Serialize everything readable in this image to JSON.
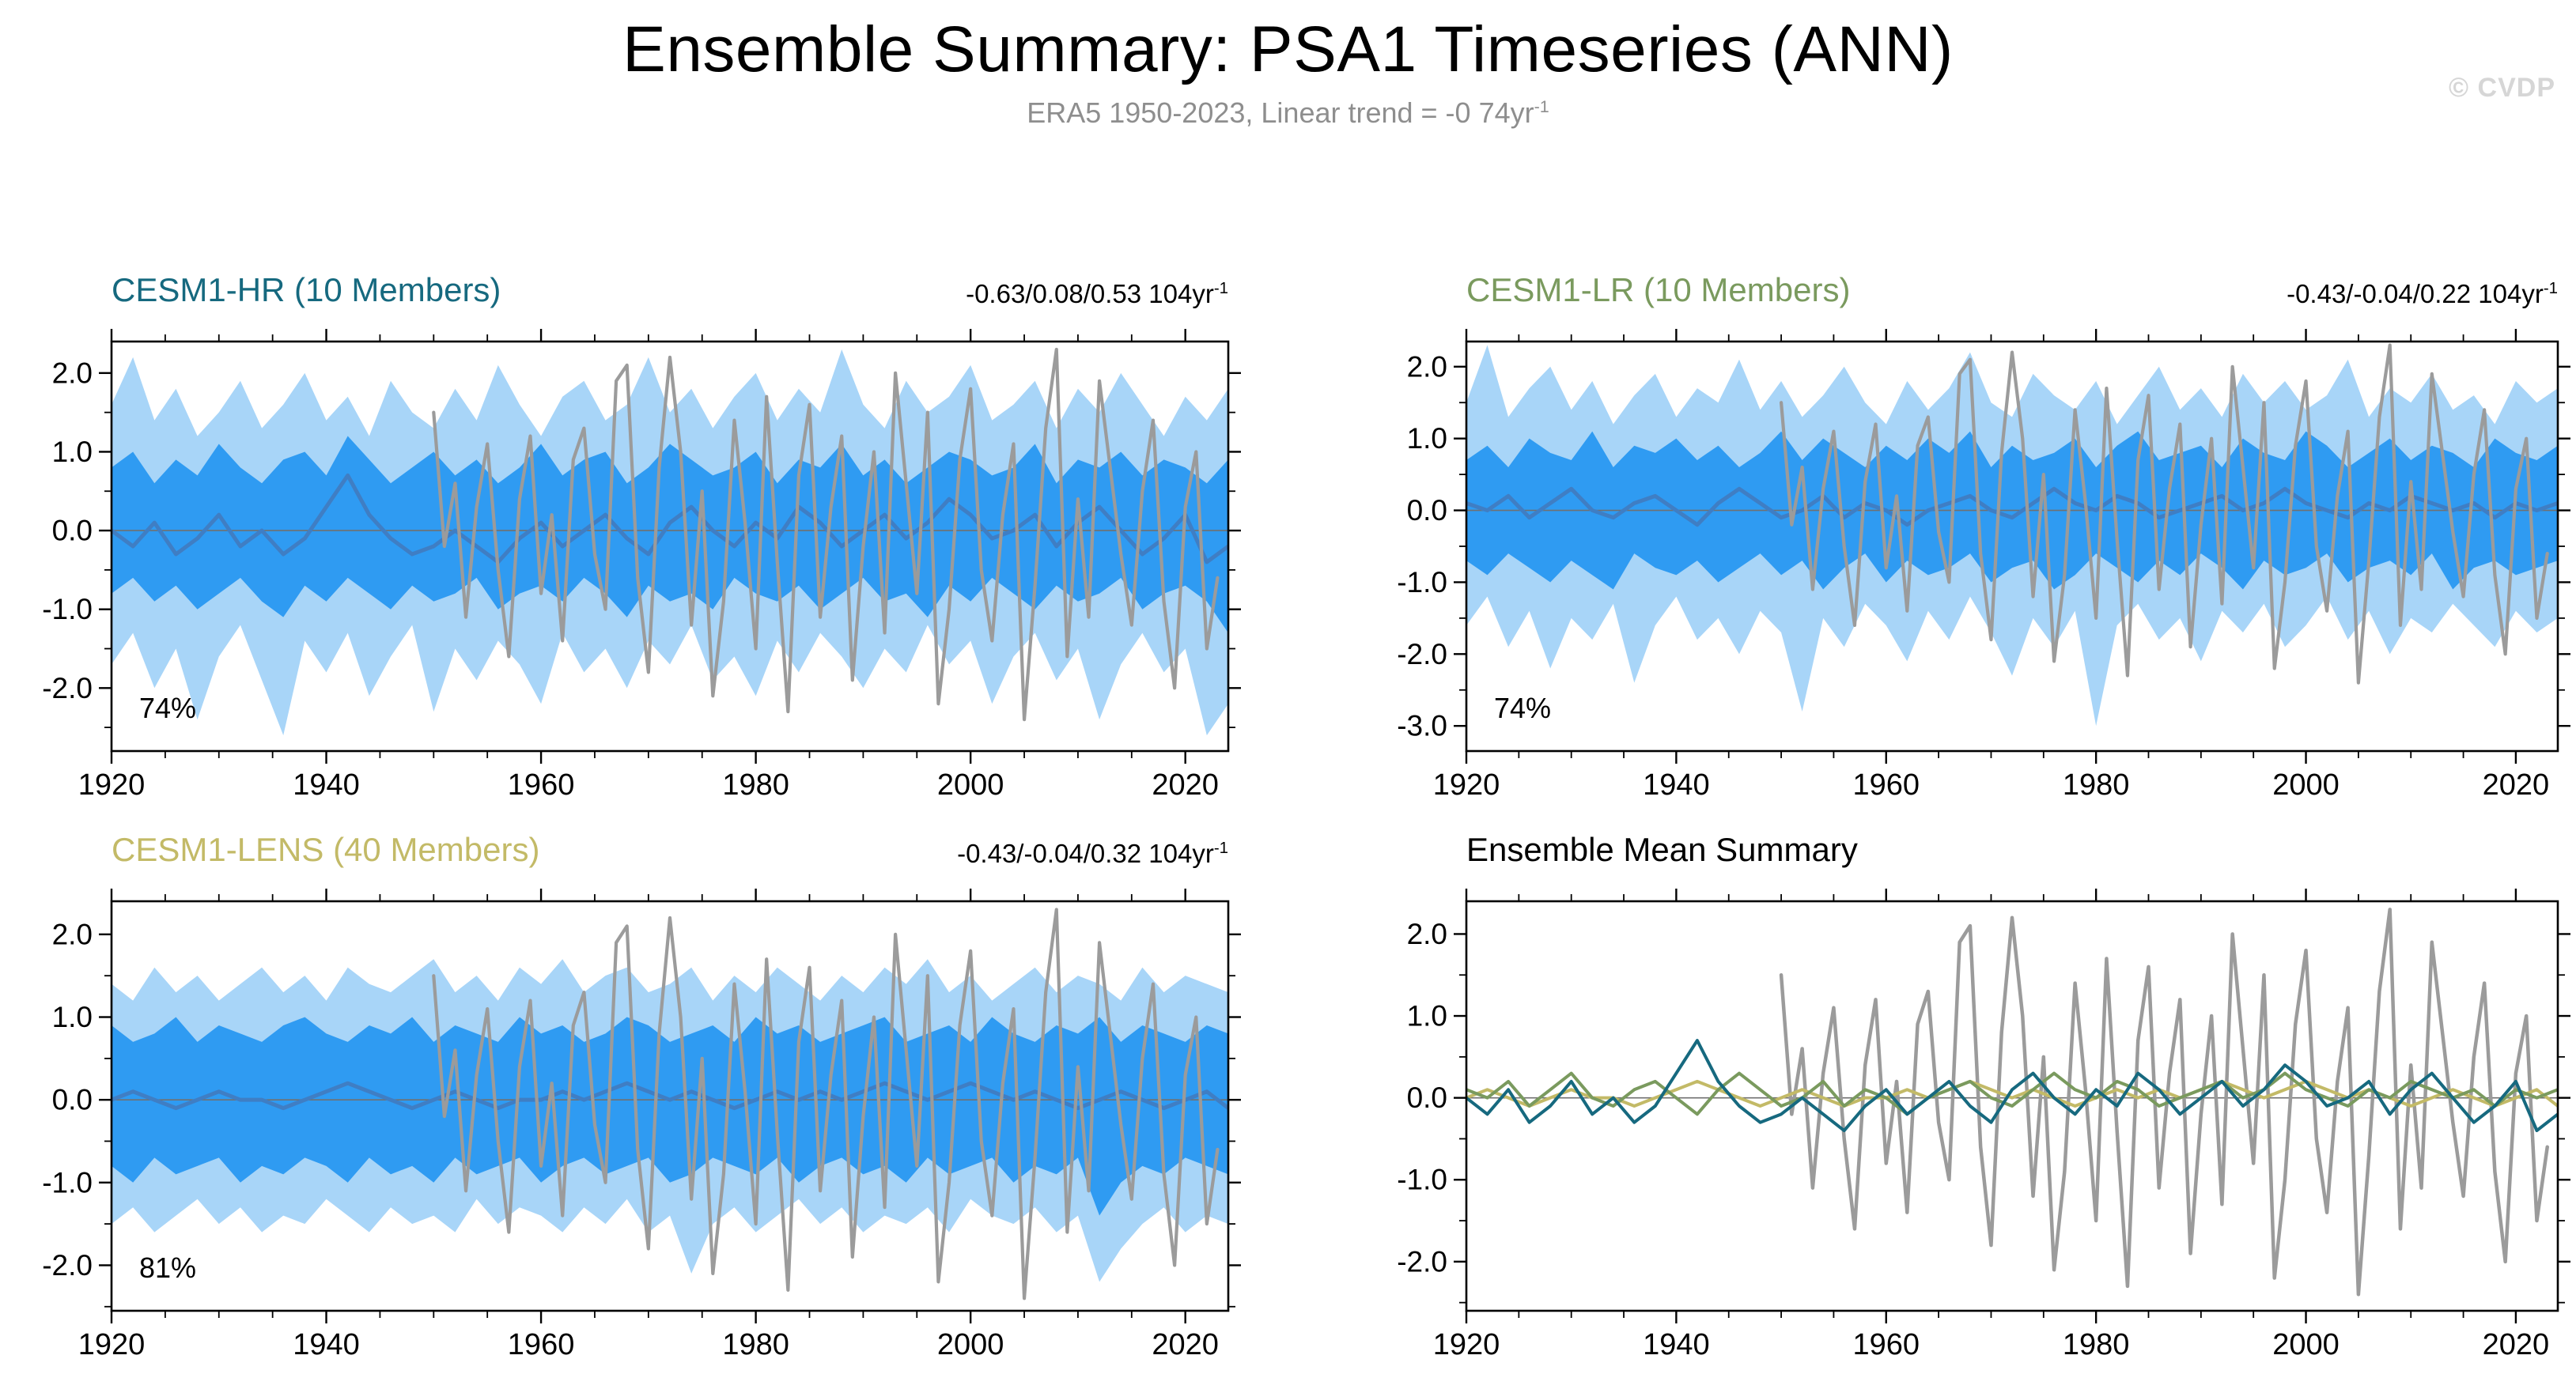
{
  "header": {
    "title": "Ensemble Summary: PSA1 Timeseries (ANN)",
    "subtitle": "ERA5 1950-2023, Linear trend = -0 74yr",
    "subtitle_sup": "-1",
    "watermark": "© CVDP"
  },
  "colors": {
    "band_outer": "#a8d5f8",
    "band_inner": "#2f9bf2",
    "ens_mean": "#3f7ec4",
    "obs": "#9b9b9b",
    "hr": "#16697f",
    "lr": "#7a9a5e",
    "lens": "#c3ba67",
    "axis": "#000000",
    "zero_line": "#707070"
  },
  "series": {
    "obs": {
      "x0": 1950,
      "dx": 1,
      "values": [
        1.5,
        -0.2,
        0.6,
        -1.1,
        0.3,
        1.1,
        -0.5,
        -1.6,
        0.4,
        1.2,
        -0.8,
        0.2,
        -1.4,
        0.9,
        1.3,
        -0.3,
        -1.0,
        1.9,
        2.1,
        -0.6,
        -1.8,
        0.8,
        2.2,
        1.0,
        -1.2,
        0.5,
        -2.1,
        -0.9,
        1.4,
        0.1,
        -1.5,
        1.7,
        -0.4,
        -2.3,
        0.7,
        1.6,
        -1.1,
        0.3,
        1.2,
        -1.9,
        -0.2,
        1.0,
        -1.3,
        2.0,
        0.6,
        -0.8,
        1.5,
        -2.2,
        -1.0,
        0.9,
        1.8,
        -0.5,
        -1.4,
        0.2,
        1.1,
        -2.4,
        -0.7,
        1.3,
        2.3,
        -1.6,
        0.4,
        -1.1,
        1.9,
        0.8,
        -0.3,
        -1.2,
        0.5,
        1.4,
        -0.9,
        -2.0,
        0.3,
        1.0,
        -1.5,
        -0.6
      ]
    },
    "hr_mean": {
      "x0": 1920,
      "dx": 2,
      "values": [
        0.0,
        -0.2,
        0.1,
        -0.3,
        -0.1,
        0.2,
        -0.2,
        0.0,
        -0.3,
        -0.1,
        0.3,
        0.7,
        0.2,
        -0.1,
        -0.3,
        -0.2,
        0.0,
        -0.2,
        -0.4,
        -0.1,
        0.1,
        -0.2,
        0.0,
        0.2,
        -0.1,
        -0.3,
        0.1,
        0.3,
        0.0,
        -0.2,
        0.1,
        -0.1,
        0.3,
        0.1,
        -0.2,
        0.0,
        0.2,
        -0.1,
        0.1,
        0.4,
        0.2,
        -0.1,
        0.0,
        0.2,
        -0.2,
        0.1,
        0.3,
        0.0,
        -0.3,
        -0.1,
        0.2,
        -0.4,
        -0.2
      ]
    },
    "lr_mean": {
      "x0": 1920,
      "dx": 2,
      "values": [
        0.1,
        0.0,
        0.2,
        -0.1,
        0.1,
        0.3,
        0.0,
        -0.1,
        0.1,
        0.2,
        0.0,
        -0.2,
        0.1,
        0.3,
        0.1,
        -0.1,
        0.0,
        0.2,
        -0.1,
        0.1,
        0.0,
        -0.2,
        0.0,
        0.1,
        0.2,
        0.0,
        -0.1,
        0.1,
        0.3,
        0.1,
        0.0,
        0.2,
        0.1,
        -0.1,
        0.0,
        0.1,
        0.2,
        0.0,
        0.1,
        0.3,
        0.1,
        0.0,
        -0.1,
        0.1,
        0.0,
        0.2,
        0.1,
        0.0,
        0.1,
        -0.1,
        0.1,
        0.0,
        0.1
      ]
    },
    "lens_mean": {
      "x0": 1920,
      "dx": 2,
      "values": [
        0.0,
        0.1,
        0.0,
        -0.1,
        0.0,
        0.1,
        0.0,
        0.0,
        -0.1,
        0.0,
        0.1,
        0.2,
        0.1,
        0.0,
        -0.1,
        0.0,
        0.1,
        0.0,
        -0.1,
        0.0,
        0.0,
        0.1,
        0.0,
        0.1,
        0.2,
        0.1,
        0.0,
        0.1,
        0.0,
        -0.1,
        0.0,
        0.1,
        0.0,
        0.1,
        0.0,
        0.1,
        0.2,
        0.1,
        0.0,
        0.1,
        0.2,
        0.1,
        0.0,
        0.1,
        0.0,
        -0.1,
        0.0,
        0.1,
        0.0,
        -0.1,
        0.0,
        0.1,
        -0.1
      ]
    },
    "hr_outer_hi": {
      "x0": 1920,
      "dx": 2,
      "values": [
        1.6,
        2.2,
        1.4,
        1.8,
        1.2,
        1.5,
        1.9,
        1.3,
        1.6,
        2.0,
        1.4,
        1.7,
        1.2,
        1.9,
        1.5,
        1.3,
        1.8,
        1.4,
        2.1,
        1.6,
        1.2,
        1.7,
        1.9,
        1.4,
        1.6,
        2.2,
        1.5,
        1.8,
        1.3,
        1.7,
        2.0,
        1.4,
        1.8,
        1.5,
        2.3,
        1.6,
        1.3,
        1.9,
        1.5,
        1.7,
        2.1,
        1.4,
        1.6,
        1.9,
        1.3,
        1.8,
        1.5,
        2.0,
        1.6,
        1.2,
        1.7,
        1.4,
        1.8
      ]
    },
    "hr_outer_lo": {
      "x0": 1920,
      "dx": 2,
      "values": [
        -1.7,
        -1.3,
        -2.0,
        -1.5,
        -2.4,
        -1.6,
        -1.2,
        -1.9,
        -2.6,
        -1.4,
        -1.8,
        -1.3,
        -2.1,
        -1.6,
        -1.2,
        -2.3,
        -1.5,
        -1.9,
        -1.4,
        -1.7,
        -2.2,
        -1.3,
        -1.8,
        -1.5,
        -2.0,
        -1.4,
        -1.7,
        -1.2,
        -1.9,
        -1.6,
        -2.1,
        -1.4,
        -1.8,
        -1.3,
        -1.6,
        -2.0,
        -1.5,
        -1.8,
        -1.2,
        -1.7,
        -1.4,
        -2.2,
        -1.6,
        -1.3,
        -1.9,
        -1.5,
        -2.4,
        -1.7,
        -1.3,
        -1.8,
        -1.5,
        -2.6,
        -2.2
      ]
    },
    "hr_inner_hi": {
      "x0": 1920,
      "dx": 2,
      "values": [
        0.8,
        1.0,
        0.6,
        0.9,
        0.7,
        1.1,
        0.8,
        0.6,
        0.9,
        1.0,
        0.7,
        1.2,
        0.9,
        0.6,
        0.8,
        1.0,
        0.7,
        0.9,
        0.6,
        0.8,
        1.1,
        0.7,
        0.9,
        1.0,
        0.6,
        0.8,
        1.1,
        0.9,
        0.7,
        0.8,
        1.0,
        0.6,
        0.9,
        0.8,
        1.1,
        0.7,
        0.9,
        0.6,
        0.8,
        1.0,
        0.9,
        0.7,
        0.8,
        1.1,
        0.6,
        0.9,
        0.8,
        1.0,
        0.7,
        0.9,
        0.8,
        0.6,
        0.9
      ]
    },
    "hr_inner_lo": {
      "x0": 1920,
      "dx": 2,
      "values": [
        -0.8,
        -0.6,
        -0.9,
        -0.7,
        -1.0,
        -0.8,
        -0.6,
        -0.9,
        -1.1,
        -0.7,
        -0.9,
        -0.6,
        -0.8,
        -1.0,
        -0.7,
        -0.9,
        -0.8,
        -0.6,
        -1.0,
        -0.8,
        -0.7,
        -0.9,
        -0.6,
        -0.8,
        -1.1,
        -0.7,
        -0.9,
        -0.8,
        -1.0,
        -0.6,
        -0.8,
        -0.9,
        -0.7,
        -1.0,
        -0.8,
        -0.6,
        -0.9,
        -0.8,
        -1.1,
        -0.7,
        -0.9,
        -0.6,
        -0.8,
        -1.0,
        -0.7,
        -0.9,
        -0.8,
        -0.6,
        -1.0,
        -0.8,
        -0.7,
        -0.9,
        -1.3
      ]
    },
    "lr_outer_hi": {
      "x0": 1920,
      "dx": 2,
      "values": [
        1.5,
        2.3,
        1.3,
        1.7,
        2.0,
        1.4,
        1.8,
        1.2,
        1.6,
        1.9,
        1.3,
        1.7,
        1.5,
        2.1,
        1.4,
        1.8,
        1.3,
        1.6,
        2.0,
        1.5,
        1.2,
        1.8,
        1.4,
        1.7,
        2.2,
        1.5,
        1.3,
        1.9,
        1.6,
        1.4,
        1.8,
        1.2,
        1.6,
        2.0,
        1.4,
        1.7,
        1.3,
        1.9,
        1.5,
        1.8,
        1.4,
        1.6,
        2.1,
        1.3,
        1.7,
        1.5,
        1.9,
        1.4,
        1.6,
        1.2,
        1.8,
        1.5,
        1.7
      ]
    },
    "lr_outer_lo": {
      "x0": 1920,
      "dx": 2,
      "values": [
        -1.6,
        -1.2,
        -1.9,
        -1.4,
        -2.2,
        -1.5,
        -1.8,
        -1.3,
        -2.4,
        -1.6,
        -1.2,
        -1.8,
        -1.5,
        -2.0,
        -1.4,
        -1.7,
        -2.8,
        -1.5,
        -1.9,
        -1.3,
        -1.6,
        -2.1,
        -1.4,
        -1.8,
        -1.2,
        -1.7,
        -2.3,
        -1.5,
        -1.9,
        -1.4,
        -3.0,
        -1.6,
        -1.3,
        -1.8,
        -1.5,
        -2.1,
        -1.4,
        -1.7,
        -1.3,
        -1.9,
        -1.6,
        -1.2,
        -1.8,
        -1.4,
        -2.0,
        -1.5,
        -1.7,
        -1.3,
        -1.6,
        -1.9,
        -1.4,
        -1.7,
        -1.5
      ]
    },
    "lr_inner_hi": {
      "x0": 1920,
      "dx": 2,
      "values": [
        0.7,
        0.9,
        0.6,
        1.0,
        0.8,
        0.7,
        1.1,
        0.6,
        0.9,
        0.8,
        1.0,
        0.7,
        0.9,
        0.6,
        0.8,
        1.1,
        0.7,
        1.0,
        0.8,
        0.6,
        0.9,
        0.7,
        1.0,
        0.8,
        1.1,
        0.6,
        0.9,
        0.7,
        0.8,
        1.0,
        0.6,
        0.9,
        1.1,
        0.7,
        0.8,
        0.9,
        0.6,
        1.0,
        0.8,
        0.7,
        1.1,
        0.9,
        0.6,
        0.8,
        1.0,
        0.7,
        0.9,
        0.8,
        0.6,
        1.0,
        0.8,
        0.7,
        0.9
      ]
    },
    "lr_inner_lo": {
      "x0": 1920,
      "dx": 2,
      "values": [
        -0.7,
        -0.9,
        -0.6,
        -0.8,
        -1.0,
        -0.7,
        -0.9,
        -1.1,
        -0.6,
        -0.8,
        -0.9,
        -0.7,
        -1.0,
        -0.8,
        -0.6,
        -0.9,
        -0.7,
        -1.1,
        -0.8,
        -0.6,
        -1.0,
        -0.7,
        -0.9,
        -0.8,
        -0.6,
        -1.0,
        -0.8,
        -0.7,
        -1.1,
        -0.9,
        -0.6,
        -0.8,
        -1.0,
        -0.7,
        -0.9,
        -0.6,
        -0.8,
        -1.1,
        -0.7,
        -0.9,
        -0.8,
        -0.6,
        -1.0,
        -0.8,
        -0.7,
        -0.9,
        -0.6,
        -1.1,
        -0.8,
        -0.7,
        -0.9,
        -0.8,
        -0.7
      ]
    },
    "lens_outer_hi": {
      "x0": 1920,
      "dx": 2,
      "values": [
        1.4,
        1.2,
        1.6,
        1.3,
        1.5,
        1.2,
        1.4,
        1.6,
        1.3,
        1.5,
        1.2,
        1.6,
        1.4,
        1.3,
        1.5,
        1.7,
        1.3,
        1.5,
        1.2,
        1.6,
        1.4,
        1.7,
        1.3,
        1.5,
        1.6,
        1.3,
        1.4,
        1.6,
        1.2,
        1.5,
        1.3,
        1.6,
        1.4,
        1.2,
        1.5,
        1.3,
        1.6,
        1.4,
        1.7,
        1.3,
        1.5,
        1.2,
        1.4,
        1.6,
        1.3,
        1.5,
        1.4,
        1.2,
        1.6,
        1.3,
        1.5,
        1.4,
        1.3
      ]
    },
    "lens_outer_lo": {
      "x0": 1920,
      "dx": 2,
      "values": [
        -1.5,
        -1.3,
        -1.6,
        -1.4,
        -1.2,
        -1.5,
        -1.3,
        -1.6,
        -1.4,
        -1.5,
        -1.2,
        -1.4,
        -1.6,
        -1.3,
        -1.5,
        -1.4,
        -1.6,
        -1.2,
        -1.5,
        -1.3,
        -1.4,
        -1.6,
        -1.3,
        -1.5,
        -1.2,
        -1.6,
        -1.4,
        -2.1,
        -1.5,
        -1.3,
        -1.6,
        -1.4,
        -1.2,
        -1.5,
        -1.3,
        -1.6,
        -1.4,
        -1.5,
        -1.3,
        -1.6,
        -1.2,
        -1.4,
        -1.5,
        -1.3,
        -1.6,
        -1.4,
        -2.2,
        -1.8,
        -1.5,
        -1.3,
        -1.6,
        -1.4,
        -1.5
      ]
    },
    "lens_inner_hi": {
      "x0": 1920,
      "dx": 2,
      "values": [
        0.9,
        0.7,
        0.8,
        1.0,
        0.7,
        0.9,
        0.8,
        0.7,
        0.9,
        1.0,
        0.8,
        0.7,
        0.9,
        0.8,
        1.0,
        0.7,
        0.9,
        0.8,
        0.7,
        1.0,
        0.8,
        0.9,
        0.7,
        0.8,
        1.0,
        0.9,
        0.7,
        0.8,
        0.9,
        0.7,
        1.0,
        0.8,
        0.9,
        0.7,
        0.8,
        0.9,
        1.0,
        0.7,
        0.8,
        0.9,
        0.7,
        1.0,
        0.8,
        0.7,
        0.9,
        0.8,
        1.0,
        0.7,
        0.9,
        0.8,
        0.7,
        0.9,
        0.8
      ]
    },
    "lens_inner_lo": {
      "x0": 1920,
      "dx": 2,
      "values": [
        -0.8,
        -1.0,
        -0.7,
        -0.9,
        -0.8,
        -0.7,
        -1.0,
        -0.8,
        -0.9,
        -0.7,
        -0.8,
        -1.0,
        -0.7,
        -0.9,
        -0.8,
        -1.0,
        -0.7,
        -0.9,
        -0.8,
        -0.7,
        -1.0,
        -0.8,
        -0.7,
        -0.9,
        -0.8,
        -0.7,
        -1.0,
        -0.9,
        -0.7,
        -0.8,
        -0.9,
        -0.7,
        -1.0,
        -0.8,
        -0.7,
        -0.9,
        -0.8,
        -1.0,
        -0.7,
        -0.9,
        -0.8,
        -0.7,
        -1.0,
        -0.8,
        -0.9,
        -0.7,
        -1.4,
        -1.0,
        -0.8,
        -0.9,
        -0.7,
        -0.8,
        -0.9
      ]
    }
  },
  "chart_data": [
    {
      "key": "cesm1-hr",
      "type": "area",
      "title": "CESM1-HR (10 Members)",
      "title_color": "hr",
      "trend_label": "-0.63/0.08/0.53 104yr",
      "trend_sup": "-1",
      "coverage": "74%",
      "xlabel": "",
      "ylabel": "",
      "xlim": [
        1920,
        2024
      ],
      "xticks": [
        "1920",
        "1940",
        "1960",
        "1980",
        "2000",
        "2020"
      ],
      "ylim": [
        -2.8,
        2.4
      ],
      "yticks": [
        "2.0",
        "1.0",
        "0.0",
        "-1.0",
        "-2.0"
      ],
      "bands": [
        {
          "hi": "hr_outer_hi",
          "lo": "hr_outer_lo",
          "color": "band_outer"
        },
        {
          "hi": "hr_inner_hi",
          "lo": "hr_inner_lo",
          "color": "band_inner"
        }
      ],
      "lines": [
        {
          "series": "hr_mean",
          "color": "ens_mean",
          "width": 5
        },
        {
          "series": "obs",
          "color": "obs",
          "width": 4.2
        }
      ]
    },
    {
      "key": "cesm1-lr",
      "type": "area",
      "title": "CESM1-LR (10 Members)",
      "title_color": "lr",
      "trend_label": "-0.43/-0.04/0.22 104yr",
      "trend_sup": "-1",
      "coverage": "74%",
      "xlabel": "",
      "ylabel": "",
      "xlim": [
        1920,
        2024
      ],
      "xticks": [
        "1920",
        "1940",
        "1960",
        "1980",
        "2000",
        "2020"
      ],
      "ylim": [
        -3.35,
        2.35
      ],
      "yticks": [
        "2.0",
        "1.0",
        "0.0",
        "-1.0",
        "-2.0",
        "-3.0"
      ],
      "bands": [
        {
          "hi": "lr_outer_hi",
          "lo": "lr_outer_lo",
          "color": "band_outer"
        },
        {
          "hi": "lr_inner_hi",
          "lo": "lr_inner_lo",
          "color": "band_inner"
        }
      ],
      "lines": [
        {
          "series": "lr_mean",
          "color": "ens_mean",
          "width": 5
        },
        {
          "series": "obs",
          "color": "obs",
          "width": 4.2
        }
      ]
    },
    {
      "key": "cesm1-lens",
      "type": "area",
      "title": "CESM1-LENS (40 Members)",
      "title_color": "lens",
      "trend_label": "-0.43/-0.04/0.32 104yr",
      "trend_sup": "-1",
      "coverage": "81%",
      "xlabel": "",
      "ylabel": "",
      "xlim": [
        1920,
        2024
      ],
      "xticks": [
        "1920",
        "1940",
        "1960",
        "1980",
        "2000",
        "2020"
      ],
      "ylim": [
        -2.55,
        2.4
      ],
      "yticks": [
        "2.0",
        "1.0",
        "0.0",
        "-1.0",
        "-2.0"
      ],
      "bands": [
        {
          "hi": "lens_outer_hi",
          "lo": "lens_outer_lo",
          "color": "band_outer"
        },
        {
          "hi": "lens_inner_hi",
          "lo": "lens_inner_lo",
          "color": "band_inner"
        }
      ],
      "lines": [
        {
          "series": "lens_mean",
          "color": "ens_mean",
          "width": 5
        },
        {
          "series": "obs",
          "color": "obs",
          "width": 4.2
        }
      ]
    },
    {
      "key": "ensemble-mean-summary",
      "type": "line",
      "title": "Ensemble Mean Summary",
      "title_color": "axis",
      "trend_label": "",
      "trend_sup": "",
      "coverage": "",
      "xlabel": "",
      "ylabel": "",
      "xlim": [
        1920,
        2024
      ],
      "xticks": [
        "1920",
        "1940",
        "1960",
        "1980",
        "2000",
        "2020"
      ],
      "ylim": [
        -2.6,
        2.4
      ],
      "yticks": [
        "2.0",
        "1.0",
        "0.0",
        "-1.0",
        "-2.0"
      ],
      "bands": [],
      "lines": [
        {
          "series": "obs",
          "color": "obs",
          "width": 4.5
        },
        {
          "series": "lens_mean",
          "color": "lens",
          "width": 4
        },
        {
          "series": "lr_mean",
          "color": "lr",
          "width": 4
        },
        {
          "series": "hr_mean",
          "color": "hr",
          "width": 4
        }
      ]
    }
  ]
}
